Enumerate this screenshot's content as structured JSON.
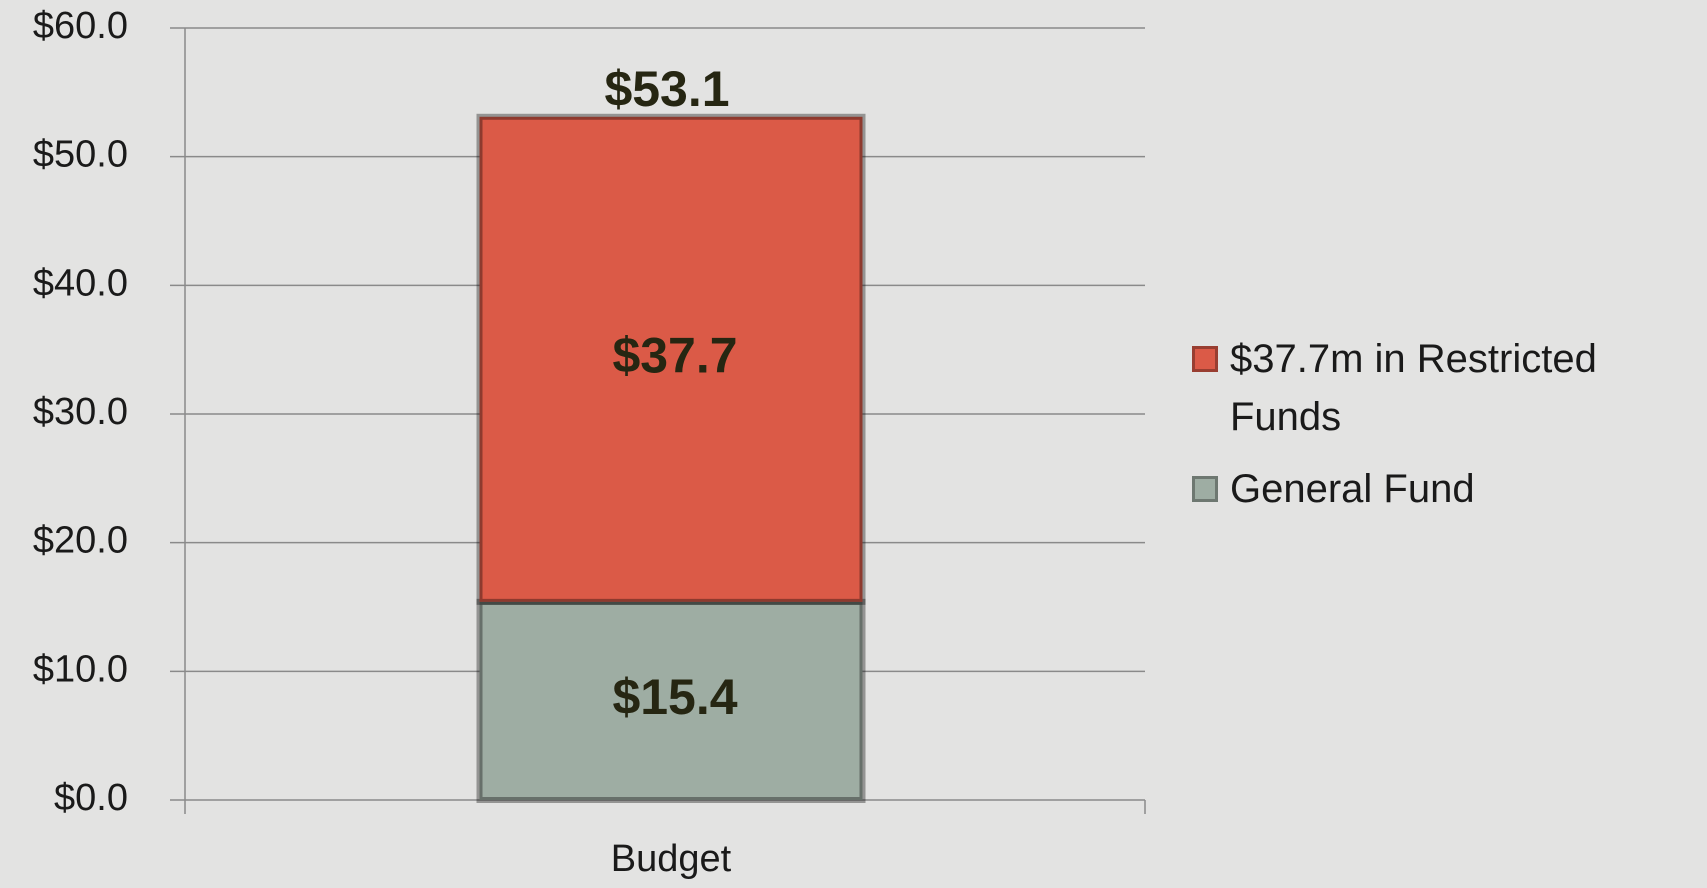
{
  "chart_data": {
    "type": "stacked_bar",
    "categories": [
      "Budget"
    ],
    "series": [
      {
        "name": "General Fund",
        "color": "#9eada3",
        "values": [
          15.4
        ],
        "value_labels": [
          "$15.4"
        ]
      },
      {
        "name": "$37.7m in Restricted Funds",
        "color": "#db5a47",
        "values": [
          37.7
        ],
        "value_labels": [
          "$37.7"
        ]
      }
    ],
    "totals": [
      53.1
    ],
    "total_labels": [
      "$53.1"
    ],
    "ylim": [
      0,
      60
    ],
    "yticks": [
      {
        "value": 0,
        "label": "$0.0"
      },
      {
        "value": 10,
        "label": "$10.0"
      },
      {
        "value": 20,
        "label": "$20.0"
      },
      {
        "value": 30,
        "label": "$30.0"
      },
      {
        "value": 40,
        "label": "$40.0"
      },
      {
        "value": 50,
        "label": "$50.0"
      },
      {
        "value": 60,
        "label": "$60.0"
      }
    ],
    "grid": true,
    "legend": "right"
  }
}
